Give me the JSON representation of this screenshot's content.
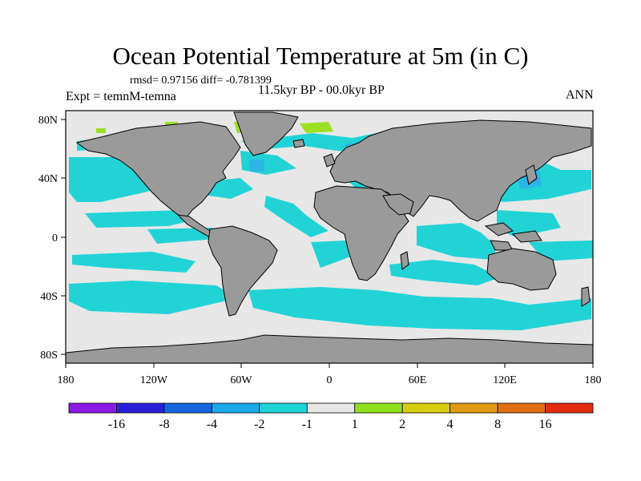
{
  "title": "Ocean Potential Temperature at 5m (in C)",
  "stats": "rmsd= 0.97156 diff= -0.781399",
  "experiment": "Expt = temnM-temna",
  "period": "11.5kyr BP - 00.0kyr BP",
  "season": "ANN",
  "colors": {
    "land": "#9a9a9a",
    "ocean_neutral": "#e7e7e7",
    "cool_minus2_to_minus1": "#22d3d6",
    "cool_minus4_to_minus2": "#2ab7e6",
    "cool_minus8_to_minus4": "#3a7fe3",
    "warm_1_to_2": "#9be023"
  },
  "axes": {
    "x_ticks": [
      "180",
      "120W",
      "60W",
      "0",
      "60E",
      "120E",
      "180"
    ],
    "y_ticks": [
      "80N",
      "40N",
      "0",
      "40S",
      "80S"
    ]
  },
  "colorbar": {
    "colors": [
      "#8c18e6",
      "#2a1fd8",
      "#1766e0",
      "#18a9e8",
      "#1cd6d8",
      "#e6e6e6",
      "#90e01c",
      "#d8cc10",
      "#e09a14",
      "#e06e12",
      "#e22c10"
    ],
    "labels": [
      "-16",
      "-8",
      "-4",
      "-2",
      "-1",
      "1",
      "2",
      "4",
      "8",
      "16"
    ]
  }
}
